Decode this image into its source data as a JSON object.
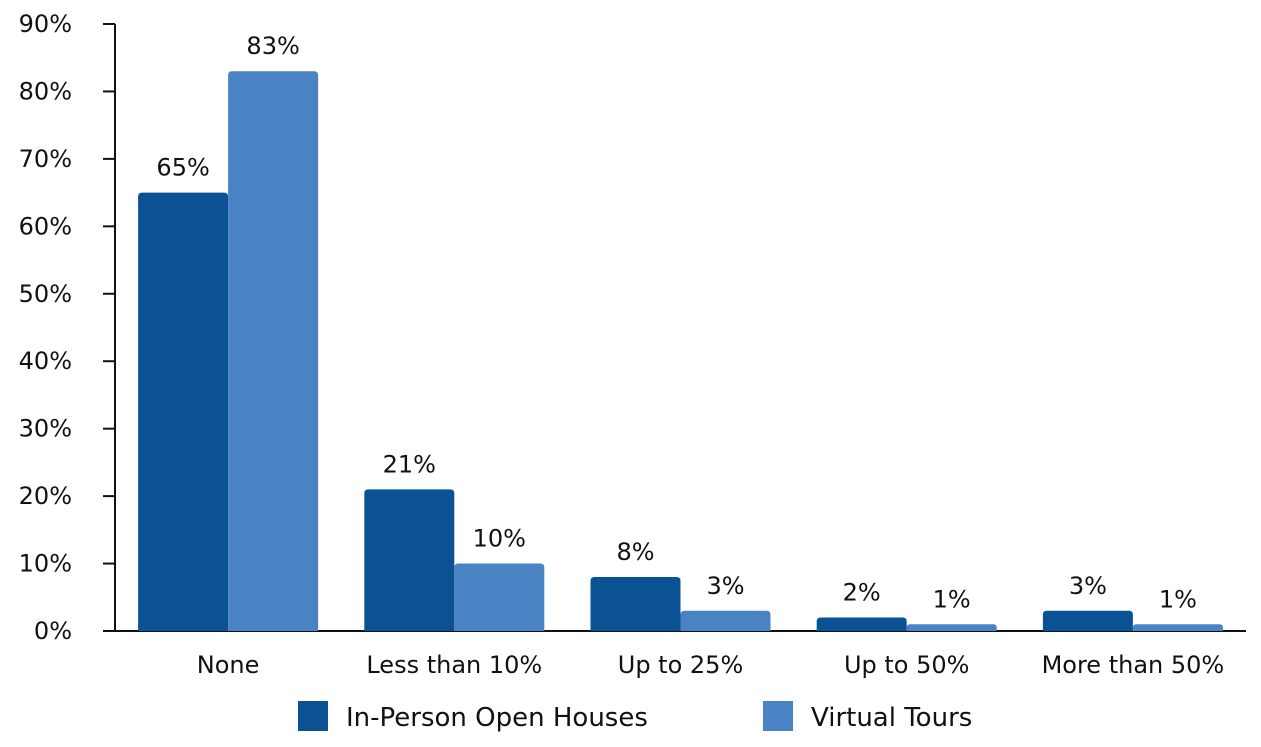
{
  "chart_data": {
    "type": "bar",
    "categories": [
      "None",
      "Less than 10%",
      "Up to 25%",
      "Up to 50%",
      "More than 50%"
    ],
    "series": [
      {
        "name": "In-Person Open Houses",
        "values": [
          65,
          21,
          8,
          2,
          3
        ],
        "labels": [
          "65%",
          "21%",
          "8%",
          "2%",
          "3%"
        ],
        "color": "#0a5294"
      },
      {
        "name": "Virtual Tours",
        "values": [
          83,
          10,
          3,
          1,
          1
        ],
        "labels": [
          "83%",
          "10%",
          "3%",
          "1%",
          "1%"
        ],
        "color": "#4a83c4"
      }
    ],
    "y_ticks": [
      "0%",
      "10%",
      "20%",
      "30%",
      "40%",
      "50%",
      "60%",
      "70%",
      "80%",
      "90%"
    ],
    "ylim": [
      0,
      90
    ],
    "grid": false,
    "legend_position": "bottom"
  }
}
